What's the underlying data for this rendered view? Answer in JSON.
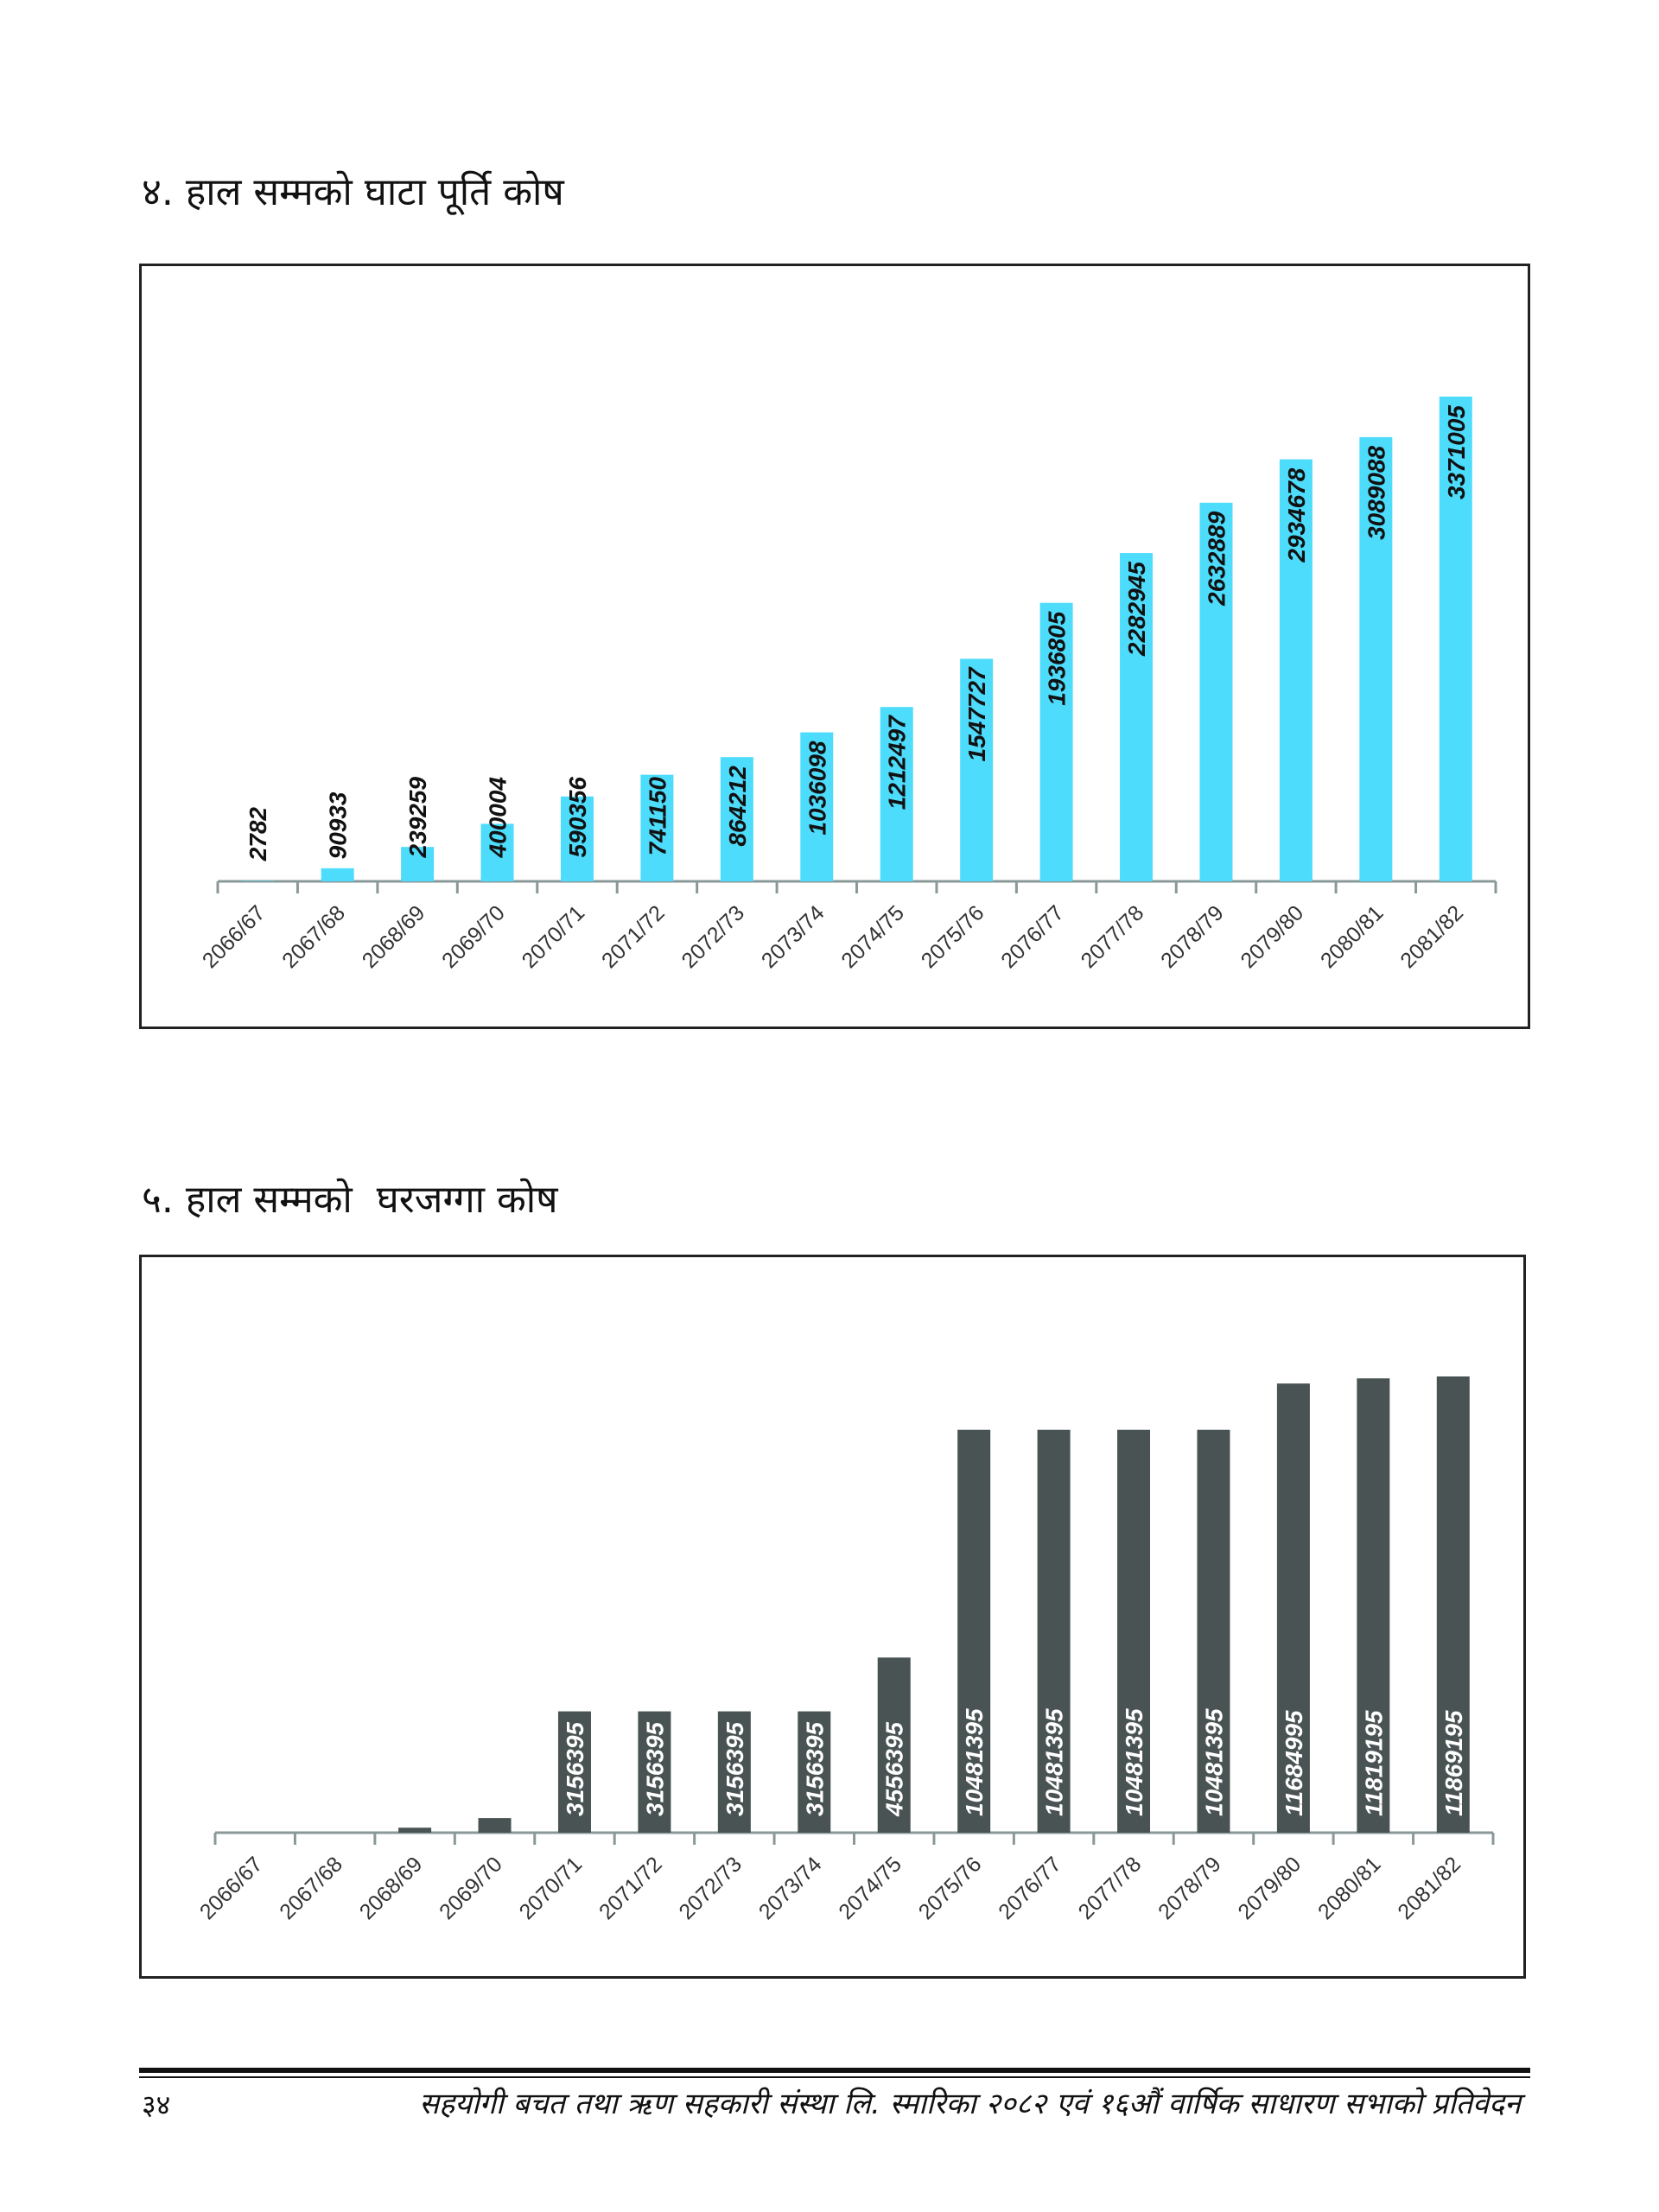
{
  "charts": [
    {
      "title": "४. हाल सम्मको घाटा पूर्ति कोष"
    },
    {
      "title": "५. हाल सम्मको  घरजग्गा कोष"
    }
  ],
  "footer": {
    "page_number": "३४",
    "text": "सहयोगी बचत तथा ऋण सहकारी संस्था लि. स्मारिका २०८२ एवं १६औं वार्षिक साधारण सभाको प्रतिवेदन"
  },
  "chart_data": [
    {
      "type": "bar",
      "title": "४. हाल सम्मको घाटा पूर्ति कोष",
      "categories": [
        "2066/67",
        "2067/68",
        "2068/69",
        "2069/70",
        "2070/71",
        "2071/72",
        "2072/73",
        "2073/74",
        "2074/75",
        "2075/76",
        "2076/77",
        "2077/78",
        "2078/79",
        "2079/80",
        "2080/81",
        "2081/82"
      ],
      "values": [
        2782,
        90933,
        239259,
        400004,
        590356,
        741150,
        864212,
        1036098,
        1212497,
        1547727,
        1936805,
        2282945,
        2632889,
        2934678,
        3089088,
        3371005
      ],
      "data_labels": true,
      "bar_color": "#4ddcfb",
      "label_color": "#111111",
      "xlabel": "",
      "ylabel": "",
      "grid": false
    },
    {
      "type": "bar",
      "title": "५. हाल सम्मको  घरजग्गा कोष",
      "categories": [
        "2066/67",
        "2067/68",
        "2068/69",
        "2069/70",
        "2070/71",
        "2071/72",
        "2072/73",
        "2073/74",
        "2074/75",
        "2075/76",
        "2076/77",
        "2077/78",
        "2078/79",
        "2079/80",
        "2080/81",
        "2081/82"
      ],
      "values": [
        0,
        0,
        130000,
        380000,
        3156395,
        3156395,
        3156395,
        3156395,
        4556395,
        10481395,
        10481395,
        10481395,
        10481395,
        11684995,
        11819195,
        11869195
      ],
      "labels": [
        "",
        "",
        "",
        "",
        "3156395",
        "3156395",
        "3156395",
        "3156395",
        "4556395",
        "10481395",
        "10481395",
        "10481395",
        "10481395",
        "11684995",
        "11819195",
        "11869195"
      ],
      "data_labels": true,
      "bar_color": "#4a5353",
      "label_color": "#ffffff",
      "xlabel": "",
      "ylabel": "",
      "grid": false
    }
  ]
}
